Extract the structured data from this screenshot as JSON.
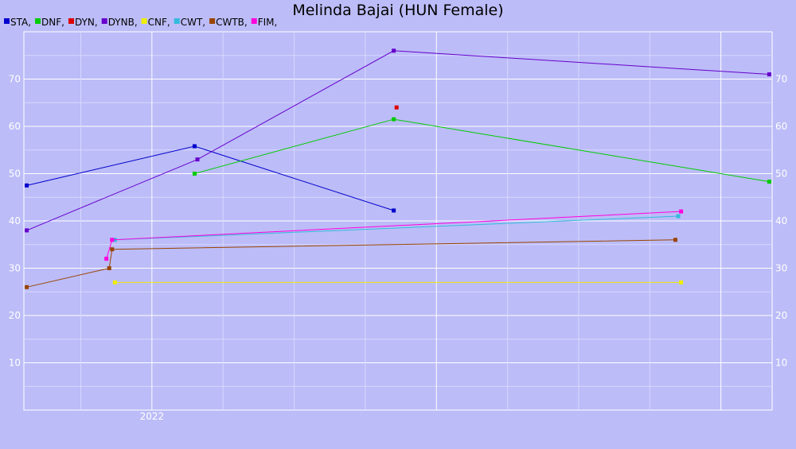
{
  "chart_data": {
    "type": "line",
    "title": "Melinda Bajai (HUN Female)",
    "xlabel": "",
    "ylabel": "",
    "ylim": [
      0,
      80
    ],
    "y_ticks": [
      10,
      20,
      30,
      40,
      50,
      60,
      70
    ],
    "y_tick_labels": [
      "10",
      "20",
      "30",
      "40",
      "50",
      "60",
      "70"
    ],
    "x_tick_labels": [
      {
        "value": 2022.0,
        "label": "2022"
      }
    ],
    "xlim": [
      2021.55,
      2024.18
    ],
    "grid": true,
    "legend_placement": "top-left",
    "series": [
      {
        "name": "STA",
        "legend": "STA,",
        "color": "#0000cc",
        "points": [
          [
            2021.56,
            47.5
          ],
          [
            2022.15,
            55.8
          ],
          [
            2022.85,
            42.2
          ]
        ]
      },
      {
        "name": "DNF",
        "legend": "DNF,",
        "color": "#00cc00",
        "points": [
          [
            2022.15,
            50
          ],
          [
            2022.85,
            61.5
          ],
          [
            2024.17,
            48.3
          ]
        ]
      },
      {
        "name": "DYN",
        "legend": "DYN,",
        "color": "#dd0000",
        "points": [
          [
            2022.86,
            64
          ]
        ]
      },
      {
        "name": "DYNB",
        "legend": "DYNB,",
        "color": "#6600cc",
        "points": [
          [
            2021.56,
            38
          ],
          [
            2022.16,
            53
          ],
          [
            2022.85,
            76
          ],
          [
            2024.17,
            71
          ]
        ]
      },
      {
        "name": "CNF",
        "legend": "CNF,",
        "color": "#eeee00",
        "points": [
          [
            2021.87,
            27
          ],
          [
            2023.86,
            27
          ]
        ]
      },
      {
        "name": "CWT",
        "legend": "CWT,",
        "color": "#33bbdd",
        "points": [
          [
            2021.87,
            36
          ],
          [
            2023.85,
            41
          ]
        ]
      },
      {
        "name": "CWTB",
        "legend": "CWTB,",
        "color": "#994400",
        "points": [
          [
            2021.56,
            26
          ],
          [
            2021.85,
            30
          ],
          [
            2021.86,
            34
          ],
          [
            2023.84,
            36
          ]
        ]
      },
      {
        "name": "FIM",
        "legend": "FIM,",
        "color": "#ff00dd",
        "points": [
          [
            2021.84,
            32
          ],
          [
            2021.86,
            36
          ],
          [
            2023.86,
            42
          ]
        ]
      }
    ]
  }
}
